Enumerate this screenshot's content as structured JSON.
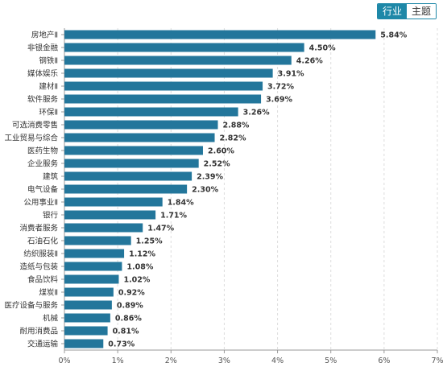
{
  "toggle": {
    "options": [
      "行业",
      "主题"
    ],
    "active": "行业"
  },
  "colors": {
    "bar": "#23769b",
    "accent": "#1e88a8",
    "grid": "#dddddd",
    "axis": "#999999"
  },
  "chart_data": {
    "type": "bar",
    "orientation": "horizontal",
    "categories": [
      "房地产Ⅱ",
      "非银金融",
      "钢铁Ⅱ",
      "媒体娱乐",
      "建材Ⅱ",
      "软件服务",
      "环保Ⅱ",
      "可选消费零售",
      "工业贸易与综合",
      "医药生物",
      "企业服务",
      "建筑",
      "电气设备",
      "公用事业Ⅱ",
      "银行",
      "消费者服务",
      "石油石化",
      "纺织服装Ⅱ",
      "造纸与包装",
      "食品饮料",
      "煤炭Ⅱ",
      "医疗设备与服务",
      "机械",
      "耐用消费品",
      "交通运输"
    ],
    "values": [
      5.84,
      4.5,
      4.26,
      3.91,
      3.72,
      3.69,
      3.26,
      2.88,
      2.82,
      2.6,
      2.52,
      2.39,
      2.3,
      1.84,
      1.71,
      1.47,
      1.25,
      1.12,
      1.08,
      1.02,
      0.92,
      0.89,
      0.86,
      0.81,
      0.73
    ],
    "value_labels": [
      "5.84%",
      "4.50%",
      "4.26%",
      "3.91%",
      "3.72%",
      "3.69%",
      "3.26%",
      "2.88%",
      "2.82%",
      "2.60%",
      "2.52%",
      "2.39%",
      "2.30%",
      "1.84%",
      "1.71%",
      "1.47%",
      "1.25%",
      "1.12%",
      "1.08%",
      "1.02%",
      "0.92%",
      "0.89%",
      "0.86%",
      "0.81%",
      "0.73%"
    ],
    "x_ticks": [
      0,
      1,
      2,
      3,
      4,
      5,
      6,
      7
    ],
    "x_tick_labels": [
      "0%",
      "1%",
      "2%",
      "3%",
      "4%",
      "5%",
      "6%",
      "7%"
    ],
    "xlim": [
      0,
      7
    ],
    "grid": true,
    "title": "",
    "xlabel": "",
    "ylabel": ""
  }
}
